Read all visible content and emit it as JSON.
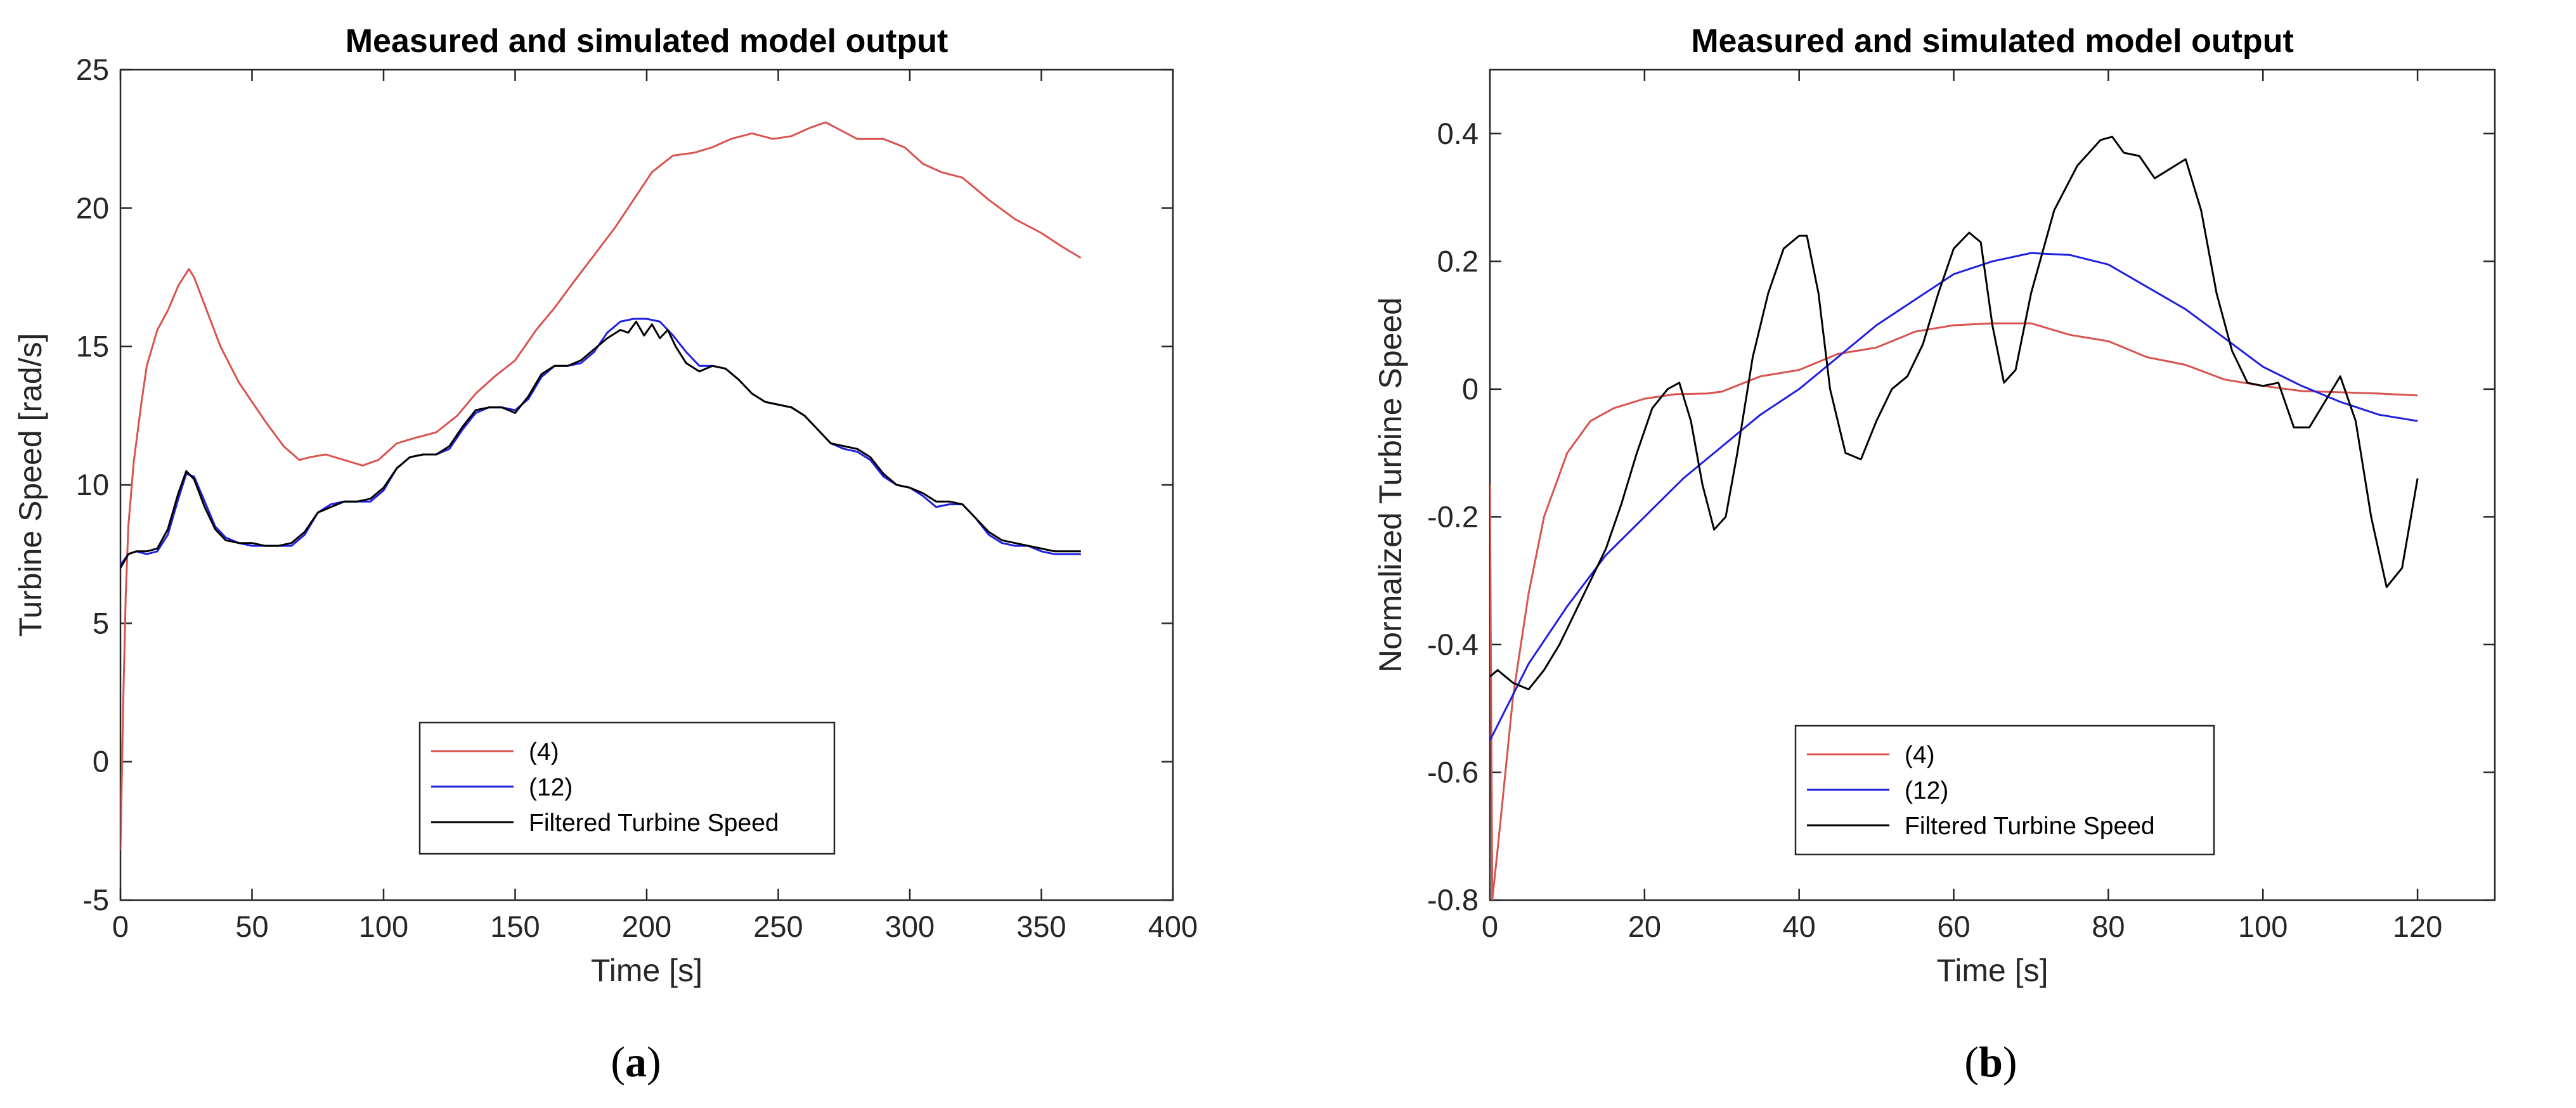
{
  "chart_data": [
    {
      "type": "line",
      "title": "Measured and simulated model output",
      "xlabel": "Time [s]",
      "ylabel": "Turbine Speed [rad/s]",
      "xlim": [
        0,
        400
      ],
      "ylim": [
        -5,
        25
      ],
      "xticks": [
        0,
        50,
        100,
        150,
        200,
        250,
        300,
        350,
        400
      ],
      "yticks": [
        -5,
        0,
        5,
        10,
        15,
        20,
        25
      ],
      "legend_position": "bottom-center",
      "caption_letter": "a",
      "series": [
        {
          "name": "(4)",
          "color": "#d9534f",
          "x": [
            0,
            1,
            2,
            3,
            5,
            8,
            10,
            14,
            18,
            22,
            26,
            28,
            32,
            38,
            45,
            55,
            62,
            68,
            72,
            78,
            85,
            92,
            98,
            105,
            112,
            120,
            128,
            135,
            142,
            150,
            158,
            165,
            172,
            180,
            188,
            195,
            202,
            210,
            218,
            225,
            232,
            240,
            248,
            255,
            262,
            268,
            272,
            280,
            290,
            298,
            305,
            312,
            320,
            330,
            340,
            350,
            358,
            365
          ],
          "y": [
            -3.2,
            2,
            6,
            8.5,
            10.8,
            13,
            14.3,
            15.6,
            16.3,
            17.2,
            17.8,
            17.5,
            16.5,
            15,
            13.7,
            12.3,
            11.4,
            10.9,
            11,
            11.1,
            10.9,
            10.7,
            10.9,
            11.5,
            11.7,
            11.9,
            12.5,
            13.3,
            13.9,
            14.5,
            15.6,
            16.4,
            17.3,
            18.3,
            19.3,
            20.3,
            21.3,
            21.9,
            22,
            22.2,
            22.5,
            22.7,
            22.5,
            22.6,
            22.9,
            23.1,
            22.9,
            22.5,
            22.5,
            22.2,
            21.6,
            21.3,
            21.1,
            20.3,
            19.6,
            19.1,
            18.6,
            18.2
          ]
        },
        {
          "name": "(12)",
          "color": "#1f1fe0",
          "x": [
            0,
            3,
            6,
            10,
            14,
            18,
            22,
            25,
            28,
            32,
            36,
            40,
            45,
            50,
            55,
            60,
            65,
            70,
            75,
            80,
            85,
            90,
            95,
            100,
            105,
            110,
            115,
            120,
            125,
            130,
            135,
            140,
            145,
            150,
            155,
            160,
            165,
            170,
            175,
            180,
            185,
            190,
            195,
            200,
            205,
            210,
            215,
            220,
            225,
            230,
            235,
            240,
            245,
            250,
            255,
            260,
            265,
            270,
            275,
            280,
            285,
            290,
            295,
            300,
            305,
            310,
            315,
            320,
            325,
            330,
            335,
            340,
            345,
            350,
            355,
            360,
            365
          ],
          "y": [
            7.1,
            7.5,
            7.6,
            7.5,
            7.6,
            8.2,
            9.5,
            10.4,
            10.3,
            9.4,
            8.5,
            8.1,
            7.9,
            7.8,
            7.8,
            7.8,
            7.8,
            8.2,
            9,
            9.3,
            9.4,
            9.4,
            9.4,
            9.8,
            10.6,
            11,
            11.1,
            11.1,
            11.3,
            12,
            12.6,
            12.8,
            12.8,
            12.7,
            13.1,
            13.9,
            14.3,
            14.3,
            14.4,
            14.8,
            15.5,
            15.9,
            16.0,
            16.0,
            15.9,
            15.4,
            14.8,
            14.3,
            14.3,
            14.2,
            13.8,
            13.3,
            13,
            12.9,
            12.8,
            12.5,
            12,
            11.5,
            11.3,
            11.2,
            10.9,
            10.3,
            10,
            9.9,
            9.6,
            9.2,
            9.3,
            9.3,
            8.8,
            8.2,
            7.9,
            7.8,
            7.8,
            7.6,
            7.5,
            7.5,
            7.5
          ]
        },
        {
          "name": "Filtered Turbine Speed",
          "color": "#000000",
          "x": [
            0,
            3,
            6,
            10,
            14,
            18,
            22,
            25,
            28,
            32,
            36,
            40,
            45,
            50,
            55,
            60,
            65,
            70,
            75,
            80,
            85,
            90,
            95,
            100,
            105,
            110,
            115,
            120,
            125,
            130,
            135,
            140,
            145,
            150,
            155,
            160,
            165,
            170,
            175,
            180,
            185,
            190,
            193,
            196,
            199,
            202,
            205,
            208,
            211,
            215,
            220,
            225,
            230,
            235,
            240,
            245,
            250,
            255,
            260,
            265,
            270,
            275,
            280,
            285,
            290,
            295,
            300,
            305,
            310,
            315,
            320,
            325,
            330,
            335,
            340,
            345,
            350,
            355,
            360,
            365
          ],
          "y": [
            7.0,
            7.5,
            7.6,
            7.6,
            7.7,
            8.4,
            9.7,
            10.5,
            10.2,
            9.2,
            8.4,
            8.0,
            7.9,
            7.9,
            7.8,
            7.8,
            7.9,
            8.3,
            9.0,
            9.2,
            9.4,
            9.4,
            9.5,
            9.9,
            10.6,
            11.0,
            11.1,
            11.1,
            11.4,
            12.1,
            12.7,
            12.8,
            12.8,
            12.6,
            13.2,
            14.0,
            14.3,
            14.3,
            14.5,
            14.9,
            15.3,
            15.6,
            15.5,
            15.9,
            15.4,
            15.8,
            15.3,
            15.6,
            15.0,
            14.4,
            14.1,
            14.3,
            14.2,
            13.8,
            13.3,
            13.0,
            12.9,
            12.8,
            12.5,
            12.0,
            11.5,
            11.4,
            11.3,
            11.0,
            10.4,
            10.0,
            9.9,
            9.7,
            9.4,
            9.4,
            9.3,
            8.8,
            8.3,
            8.0,
            7.9,
            7.8,
            7.7,
            7.6,
            7.6,
            7.6
          ]
        }
      ]
    },
    {
      "type": "line",
      "title": "Measured and simulated model output",
      "xlabel": "Time [s]",
      "ylabel": "Normalized Turbine Speed",
      "xlim": [
        0,
        130
      ],
      "ylim": [
        -0.8,
        0.5
      ],
      "xticks": [
        0,
        20,
        40,
        60,
        80,
        100,
        120
      ],
      "yticks": [
        -0.8,
        -0.6,
        -0.4,
        -0.2,
        0,
        0.2,
        0.4
      ],
      "legend_position": "bottom-center",
      "caption_letter": "b",
      "series": [
        {
          "name": "(4)",
          "color": "#d9534f",
          "x": [
            0,
            0.3,
            1,
            2,
            3,
            5,
            7,
            10,
            13,
            16,
            20,
            24,
            28,
            30,
            35,
            40,
            45,
            50,
            55,
            60,
            65,
            70,
            75,
            80,
            85,
            90,
            95,
            100,
            105,
            110,
            115,
            120
          ],
          "y": [
            -0.15,
            -0.8,
            -0.72,
            -0.6,
            -0.48,
            -0.32,
            -0.2,
            -0.1,
            -0.05,
            -0.03,
            -0.015,
            -0.008,
            -0.007,
            -0.004,
            0.02,
            0.03,
            0.055,
            0.065,
            0.09,
            0.1,
            0.103,
            0.103,
            0.085,
            0.075,
            0.05,
            0.038,
            0.015,
            0.005,
            -0.003,
            -0.005,
            -0.007,
            -0.01
          ]
        },
        {
          "name": "(12)",
          "color": "#1f1fe0",
          "x": [
            0,
            5,
            10,
            15,
            20,
            25,
            30,
            35,
            40,
            45,
            50,
            55,
            60,
            65,
            70,
            75,
            80,
            85,
            90,
            95,
            100,
            105,
            110,
            115,
            120
          ],
          "y": [
            -0.55,
            -0.43,
            -0.34,
            -0.26,
            -0.2,
            -0.14,
            -0.09,
            -0.04,
            0.0,
            0.05,
            0.1,
            0.14,
            0.18,
            0.2,
            0.213,
            0.21,
            0.195,
            0.16,
            0.125,
            0.08,
            0.035,
            0.005,
            -0.02,
            -0.04,
            -0.05
          ]
        },
        {
          "name": "Filtered Turbine Speed",
          "color": "#000000",
          "x": [
            0,
            1,
            2,
            3,
            5,
            7,
            9,
            11,
            13,
            15,
            17,
            19,
            21,
            23,
            24.5,
            26,
            27.5,
            29,
            30.5,
            32,
            34,
            36,
            38,
            40,
            41,
            42.5,
            44,
            46,
            48,
            50,
            52,
            54,
            56,
            58,
            60,
            62,
            63.5,
            65,
            66.5,
            68,
            70,
            73,
            76,
            79,
            80.5,
            82,
            84,
            86,
            88,
            90,
            92,
            94,
            96,
            98,
            100,
            102,
            104,
            106,
            108,
            110,
            112,
            114,
            116,
            118,
            120
          ],
          "y": [
            -0.45,
            -0.44,
            -0.45,
            -0.46,
            -0.47,
            -0.44,
            -0.4,
            -0.35,
            -0.3,
            -0.25,
            -0.18,
            -0.1,
            -0.03,
            0.0,
            0.01,
            -0.05,
            -0.15,
            -0.22,
            -0.2,
            -0.1,
            0.05,
            0.15,
            0.22,
            0.24,
            0.24,
            0.15,
            0.0,
            -0.1,
            -0.11,
            -0.05,
            0.0,
            0.02,
            0.07,
            0.15,
            0.22,
            0.245,
            0.23,
            0.1,
            0.01,
            0.03,
            0.15,
            0.28,
            0.35,
            0.39,
            0.395,
            0.37,
            0.365,
            0.33,
            0.345,
            0.36,
            0.28,
            0.15,
            0.06,
            0.01,
            0.005,
            0.01,
            -0.06,
            -0.06,
            -0.02,
            0.02,
            -0.05,
            -0.2,
            -0.31,
            -0.28,
            -0.14
          ]
        }
      ]
    }
  ]
}
